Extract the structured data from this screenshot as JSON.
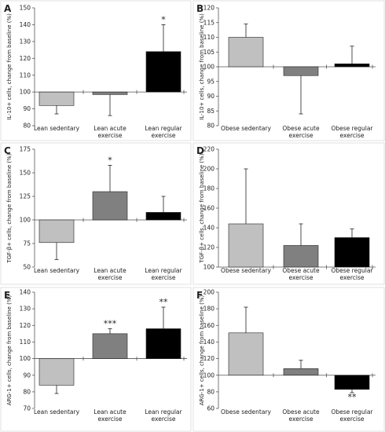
{
  "chart_data": [
    {
      "panel": "A",
      "type": "bar",
      "ylabel": "IL-10+ cells, change from baseline (%)",
      "ylim": [
        80,
        150
      ],
      "baseline": 100,
      "yticks": [
        80,
        90,
        100,
        110,
        120,
        130,
        140,
        150
      ],
      "categories": [
        [
          "Lean sedentary"
        ],
        [
          "Lean acute",
          "exercise"
        ],
        [
          "Lean regular",
          "exercise"
        ]
      ],
      "values": [
        92,
        98.5,
        124
      ],
      "errors": [
        87,
        86,
        140
      ],
      "significance": [
        "",
        "",
        "*"
      ],
      "colors": [
        "#c0c0c0",
        "#808080",
        "#000000"
      ]
    },
    {
      "panel": "B",
      "type": "bar",
      "ylabel": "IL-10+ cells, change from baseline (%)",
      "ylim": [
        80,
        120
      ],
      "baseline": 100,
      "yticks": [
        80,
        85,
        90,
        95,
        100,
        105,
        110,
        115,
        120
      ],
      "categories": [
        [
          "Obese sedentary"
        ],
        [
          "Obese acute",
          "exercise"
        ],
        [
          "Obese regular",
          "exercise"
        ]
      ],
      "values": [
        110,
        97,
        101
      ],
      "errors": [
        114.5,
        84,
        107
      ],
      "significance": [
        "",
        "",
        ""
      ],
      "colors": [
        "#c0c0c0",
        "#808080",
        "#000000"
      ]
    },
    {
      "panel": "C",
      "type": "bar",
      "ylabel": "TGF-β+ cells, change from baseline (%)",
      "ylim": [
        50,
        175
      ],
      "baseline": 100,
      "yticks": [
        50,
        75,
        100,
        125,
        150,
        175
      ],
      "categories": [
        [
          "Lean sedentary"
        ],
        [
          "Lean acute",
          "exercise"
        ],
        [
          "Lean regular",
          "exercise"
        ]
      ],
      "values": [
        76,
        130,
        108
      ],
      "errors": [
        58,
        158,
        125
      ],
      "significance": [
        "",
        "*",
        ""
      ],
      "colors": [
        "#c0c0c0",
        "#808080",
        "#000000"
      ]
    },
    {
      "panel": "D",
      "type": "bar",
      "ylabel": "TGF-β+ cells, change from baseline (%)",
      "ylim": [
        100,
        220
      ],
      "baseline": 100,
      "yticks": [
        100,
        120,
        140,
        160,
        180,
        200,
        220
      ],
      "categories": [
        [
          "Obese sedentary"
        ],
        [
          "Obese acute",
          "exercise"
        ],
        [
          "Obese regular",
          "exercise"
        ]
      ],
      "values": [
        144,
        122,
        130
      ],
      "errors": [
        200,
        144,
        139
      ],
      "significance": [
        "",
        "",
        ""
      ],
      "colors": [
        "#c0c0c0",
        "#808080",
        "#000000"
      ]
    },
    {
      "panel": "E",
      "type": "bar",
      "ylabel": "ARG-1+ cells, change from baseline (%)",
      "ylim": [
        70,
        140
      ],
      "baseline": 100,
      "yticks": [
        70,
        80,
        90,
        100,
        110,
        120,
        130,
        140
      ],
      "categories": [
        [
          "Lean sedentary"
        ],
        [
          "Lean acute",
          "exercise"
        ],
        [
          "Lean regular",
          "exercise"
        ]
      ],
      "values": [
        84,
        115,
        118
      ],
      "errors": [
        79,
        118,
        131
      ],
      "significance": [
        "",
        "***",
        "**"
      ],
      "colors": [
        "#c0c0c0",
        "#808080",
        "#000000"
      ]
    },
    {
      "panel": "F",
      "type": "bar",
      "ylabel": "ARG-1+ cells, change from baseline (%)",
      "ylim": [
        60,
        200
      ],
      "baseline": 100,
      "yticks": [
        60,
        80,
        100,
        120,
        140,
        160,
        180,
        200
      ],
      "categories": [
        [
          "Obese sedentary"
        ],
        [
          "Obese acute",
          "exercise"
        ],
        [
          "Obese regular",
          "exercise"
        ]
      ],
      "values": [
        151,
        108,
        83
      ],
      "errors": [
        182,
        118,
        79
      ],
      "significance": [
        "",
        "",
        "**"
      ],
      "colors": [
        "#c0c0c0",
        "#808080",
        "#000000"
      ]
    }
  ]
}
